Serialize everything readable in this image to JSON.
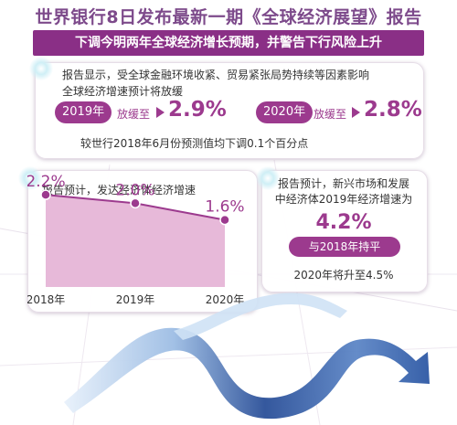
{
  "header": {
    "title": "世界银行8日发布最新一期《全球经济展望》报告",
    "banner": "下调今明两年全球经济增长预期，并警告下行风险上升"
  },
  "global_card": {
    "line1": "报告显示，受全球金融环境收紧、贸易紧张局势持续等因素影响",
    "line2": "全球经济增速预计将放缓",
    "items": [
      {
        "year": "2019年",
        "label": "放缓至",
        "rate": "2.9%"
      },
      {
        "year": "2020年",
        "label": "放缓至",
        "rate": "2.8%"
      }
    ],
    "note": "较世行2018年6月份预测值均下调0.1个百分点"
  },
  "emerging_card": {
    "line1": "报告预计，新兴市场和发展",
    "line2": "中经济体2019年经济增速为",
    "rate": "4.2%",
    "pill": "与2018年持平",
    "note": "2020年将升至4.5%"
  },
  "colors": {
    "accent": "#9c3a8e",
    "banner": "#8a2f86",
    "area_fill": "#e7b9d9",
    "area_line": "#9c3a8e",
    "arrow_light": "#cfe2f5",
    "arrow_dark": "#1f3f86"
  },
  "chart_data": {
    "type": "area",
    "title": "报告预计，发达经济体经济增速",
    "categories": [
      "2018年",
      "2019年",
      "2020年"
    ],
    "series": [
      {
        "values": [
          2.2,
          2.0,
          1.6
        ],
        "labels": [
          "2.2%",
          "2.0%",
          "1.6%"
        ]
      }
    ],
    "ylim": [
      0,
      2.4
    ],
    "grid": false
  }
}
